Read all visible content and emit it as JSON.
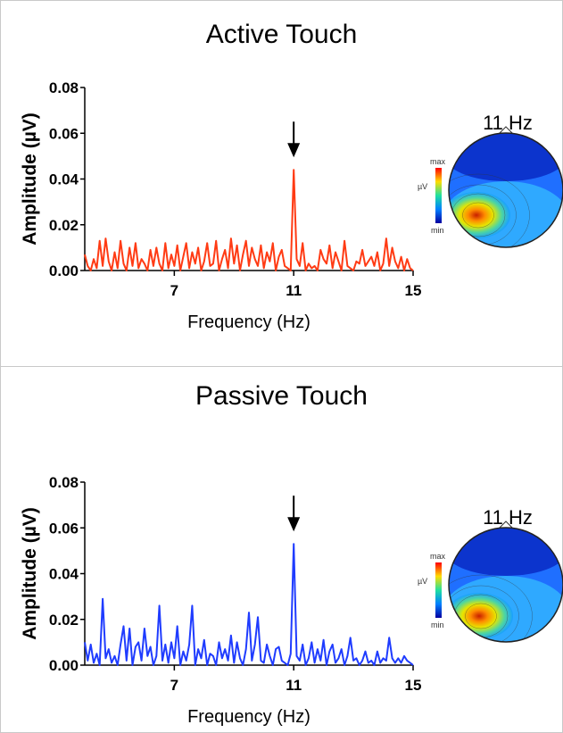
{
  "panels": [
    {
      "title": "Active Touch",
      "topo_label": "11 Hz",
      "colorbar": {
        "max": "max",
        "unit": "µV",
        "min": "min"
      },
      "line_color": "#ff3b14"
    },
    {
      "title": "Passive Touch",
      "topo_label": "11 Hz",
      "colorbar": {
        "max": "max",
        "unit": "µV",
        "min": "min"
      },
      "line_color": "#1f3cff"
    }
  ],
  "chart_data": [
    {
      "type": "line",
      "title": "Active Touch",
      "xlabel": "Frequency (Hz)",
      "ylabel": "Amplitude (µV)",
      "xlim": [
        4,
        15
      ],
      "ylim": [
        0,
        0.08
      ],
      "xticks": [
        "7",
        "11",
        "15"
      ],
      "yticks": [
        "0.00",
        "0.02",
        "0.04",
        "0.06",
        "0.08"
      ],
      "annotation": "arrow at 11 Hz",
      "series": [
        {
          "x": [
            4.0,
            4.1,
            4.2,
            4.3,
            4.4,
            4.5,
            4.6,
            4.7,
            4.8,
            4.9,
            5.0,
            5.1,
            5.2,
            5.3,
            5.4,
            5.5,
            5.6,
            5.7,
            5.8,
            5.9,
            6.0,
            6.1,
            6.2,
            6.3,
            6.4,
            6.5,
            6.6,
            6.7,
            6.8,
            6.9,
            7.0,
            7.1,
            7.2,
            7.3,
            7.4,
            7.5,
            7.6,
            7.7,
            7.8,
            7.9,
            8.0,
            8.1,
            8.2,
            8.3,
            8.4,
            8.5,
            8.6,
            8.7,
            8.8,
            8.9,
            9.0,
            9.1,
            9.2,
            9.3,
            9.4,
            9.5,
            9.6,
            9.7,
            9.8,
            9.9,
            10.0,
            10.1,
            10.2,
            10.3,
            10.4,
            10.5,
            10.6,
            10.7,
            10.8,
            10.9,
            11.0,
            11.1,
            11.2,
            11.3,
            11.4,
            11.5,
            11.6,
            11.7,
            11.8,
            11.9,
            12.0,
            12.1,
            12.2,
            12.3,
            12.4,
            12.5,
            12.6,
            12.7,
            12.8,
            12.9,
            13.0,
            13.1,
            13.2,
            13.3,
            13.4,
            13.5,
            13.6,
            13.7,
            13.8,
            13.9,
            14.0,
            14.1,
            14.2,
            14.3,
            14.4,
            14.5,
            14.6,
            14.7,
            14.8,
            14.9,
            15.0
          ],
          "y": [
            0.007,
            0.002,
            0.0,
            0.005,
            0.001,
            0.013,
            0.002,
            0.014,
            0.004,
            0.0,
            0.008,
            0.001,
            0.013,
            0.003,
            0.0,
            0.01,
            0.002,
            0.012,
            0.001,
            0.005,
            0.003,
            0.0,
            0.009,
            0.002,
            0.01,
            0.003,
            0.0,
            0.012,
            0.001,
            0.007,
            0.002,
            0.011,
            0.0,
            0.006,
            0.012,
            0.001,
            0.008,
            0.003,
            0.01,
            0.0,
            0.004,
            0.012,
            0.002,
            0.003,
            0.013,
            0.0,
            0.005,
            0.009,
            0.001,
            0.014,
            0.003,
            0.011,
            0.0,
            0.007,
            0.013,
            0.002,
            0.01,
            0.005,
            0.002,
            0.011,
            0.001,
            0.008,
            0.004,
            0.012,
            0.0,
            0.006,
            0.009,
            0.002,
            0.001,
            0.0,
            0.044,
            0.005,
            0.002,
            0.012,
            0.0,
            0.003,
            0.001,
            0.002,
            0.0,
            0.009,
            0.005,
            0.003,
            0.011,
            0.001,
            0.008,
            0.004,
            0.0,
            0.013,
            0.002,
            0.001,
            0.0,
            0.004,
            0.003,
            0.009,
            0.002,
            0.004,
            0.006,
            0.002,
            0.008,
            0.0,
            0.003,
            0.014,
            0.002,
            0.01,
            0.004,
            0.001,
            0.006,
            0.0,
            0.005,
            0.001,
            0.0
          ]
        }
      ]
    },
    {
      "type": "line",
      "title": "Passive Touch",
      "xlabel": "Frequency (Hz)",
      "ylabel": "Amplitude (µV)",
      "xlim": [
        4,
        15
      ],
      "ylim": [
        0,
        0.08
      ],
      "xticks": [
        "7",
        "11",
        "15"
      ],
      "yticks": [
        "0.00",
        "0.02",
        "0.04",
        "0.06",
        "0.08"
      ],
      "annotation": "arrow at 11 Hz",
      "series": [
        {
          "x": [
            4.0,
            4.1,
            4.2,
            4.3,
            4.4,
            4.5,
            4.6,
            4.7,
            4.8,
            4.9,
            5.0,
            5.1,
            5.2,
            5.3,
            5.4,
            5.5,
            5.6,
            5.7,
            5.8,
            5.9,
            6.0,
            6.1,
            6.2,
            6.3,
            6.4,
            6.5,
            6.6,
            6.7,
            6.8,
            6.9,
            7.0,
            7.1,
            7.2,
            7.3,
            7.4,
            7.5,
            7.6,
            7.7,
            7.8,
            7.9,
            8.0,
            8.1,
            8.2,
            8.3,
            8.4,
            8.5,
            8.6,
            8.7,
            8.8,
            8.9,
            9.0,
            9.1,
            9.2,
            9.3,
            9.4,
            9.5,
            9.6,
            9.7,
            9.8,
            9.9,
            10.0,
            10.1,
            10.2,
            10.3,
            10.4,
            10.5,
            10.6,
            10.7,
            10.8,
            10.9,
            11.0,
            11.1,
            11.2,
            11.3,
            11.4,
            11.5,
            11.6,
            11.7,
            11.8,
            11.9,
            12.0,
            12.1,
            12.2,
            12.3,
            12.4,
            12.5,
            12.6,
            12.7,
            12.8,
            12.9,
            13.0,
            13.1,
            13.2,
            13.3,
            13.4,
            13.5,
            13.6,
            13.7,
            13.8,
            13.9,
            14.0,
            14.1,
            14.2,
            14.3,
            14.4,
            14.5,
            14.6,
            14.7,
            14.8,
            14.9,
            15.0
          ],
          "y": [
            0.01,
            0.002,
            0.009,
            0.001,
            0.005,
            0.0,
            0.029,
            0.003,
            0.007,
            0.001,
            0.004,
            0.0,
            0.009,
            0.017,
            0.002,
            0.016,
            0.0,
            0.008,
            0.01,
            0.002,
            0.016,
            0.004,
            0.008,
            0.0,
            0.004,
            0.026,
            0.002,
            0.009,
            0.001,
            0.01,
            0.003,
            0.017,
            0.0,
            0.006,
            0.002,
            0.009,
            0.026,
            0.0,
            0.007,
            0.003,
            0.011,
            0.0,
            0.005,
            0.004,
            0.0,
            0.01,
            0.003,
            0.007,
            0.002,
            0.013,
            0.001,
            0.01,
            0.003,
            0.0,
            0.007,
            0.023,
            0.002,
            0.009,
            0.021,
            0.002,
            0.001,
            0.009,
            0.004,
            0.0,
            0.007,
            0.008,
            0.002,
            0.001,
            0.0,
            0.005,
            0.053,
            0.004,
            0.002,
            0.009,
            0.0,
            0.003,
            0.01,
            0.001,
            0.007,
            0.002,
            0.011,
            0.0,
            0.006,
            0.009,
            0.001,
            0.003,
            0.007,
            0.0,
            0.004,
            0.012,
            0.002,
            0.003,
            0.0,
            0.002,
            0.006,
            0.001,
            0.002,
            0.0,
            0.006,
            0.001,
            0.003,
            0.002,
            0.012,
            0.003,
            0.001,
            0.003,
            0.001,
            0.004,
            0.002,
            0.001,
            0.0
          ]
        }
      ]
    }
  ]
}
